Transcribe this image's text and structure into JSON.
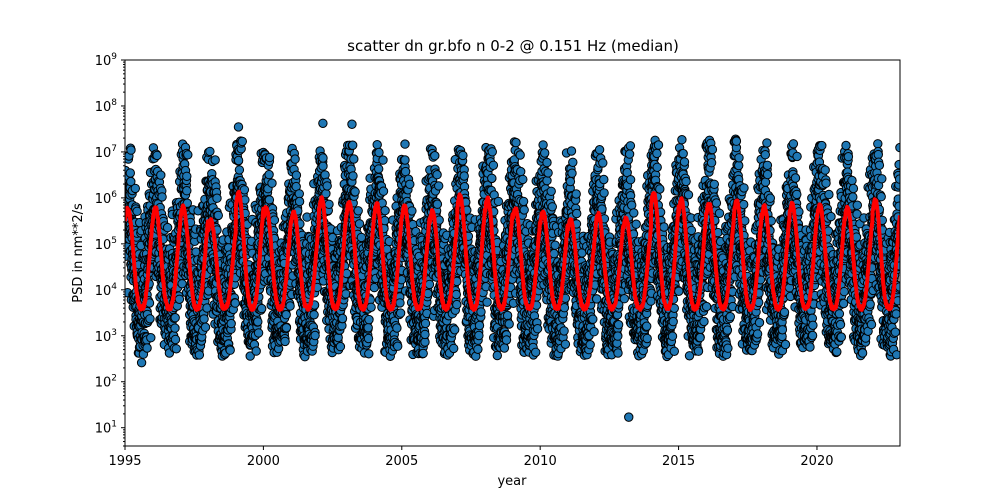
{
  "chart_data": {
    "type": "scatter",
    "title": "scatter dn gr.bfo n 0-2 @ 0.151 Hz (median)",
    "xlabel": "year",
    "ylabel": "PSD in nm**2/s",
    "xlim": [
      1995,
      2023
    ],
    "ylim": [
      4,
      1000000000
    ],
    "yscale": "log",
    "grid": false,
    "x_ticks": [
      1995,
      2000,
      2005,
      2010,
      2015,
      2020
    ],
    "y_tick_exponents": [
      1,
      2,
      3,
      4,
      5,
      6,
      7,
      8,
      9
    ],
    "y_tick_base": "10",
    "colors": {
      "points_fill": "#1f77b4",
      "points_edge": "#000000",
      "median_line": "#ff0000"
    },
    "seasonal_cycle": {
      "period_years": 1,
      "peak_phase_year_fraction": 0.1,
      "median_peak_values": [
        {
          "year": 1996,
          "value": 600000
        },
        {
          "year": 1997,
          "value": 650000
        },
        {
          "year": 1998,
          "value": 320000
        },
        {
          "year": 1999,
          "value": 1300000
        },
        {
          "year": 2000,
          "value": 600000
        },
        {
          "year": 2001,
          "value": 480000
        },
        {
          "year": 2002,
          "value": 950000
        },
        {
          "year": 2003,
          "value": 800000
        },
        {
          "year": 2004,
          "value": 750000
        },
        {
          "year": 2005,
          "value": 650000
        },
        {
          "year": 2006,
          "value": 500000
        },
        {
          "year": 2007,
          "value": 1100000
        },
        {
          "year": 2008,
          "value": 950000
        },
        {
          "year": 2009,
          "value": 600000
        },
        {
          "year": 2010,
          "value": 500000
        },
        {
          "year": 2011,
          "value": 330000
        },
        {
          "year": 2012,
          "value": 450000
        },
        {
          "year": 2013,
          "value": 350000
        },
        {
          "year": 2014,
          "value": 1300000
        },
        {
          "year": 2015,
          "value": 900000
        },
        {
          "year": 2016,
          "value": 750000
        },
        {
          "year": 2017,
          "value": 850000
        },
        {
          "year": 2018,
          "value": 650000
        },
        {
          "year": 2019,
          "value": 750000
        },
        {
          "year": 2020,
          "value": 700000
        },
        {
          "year": 2021,
          "value": 600000
        },
        {
          "year": 2022,
          "value": 900000
        }
      ],
      "median_trough_value": 4000,
      "scatter_upper_envelope": 10000000,
      "scatter_lower_envelope": 700
    },
    "outliers": [
      {
        "x": 2013.2,
        "y": 17
      },
      {
        "x": 1995.6,
        "y": 260
      },
      {
        "x": 2002.15,
        "y": 42000000
      },
      {
        "x": 2003.2,
        "y": 40000000
      },
      {
        "x": 1999.1,
        "y": 35000000
      }
    ]
  }
}
